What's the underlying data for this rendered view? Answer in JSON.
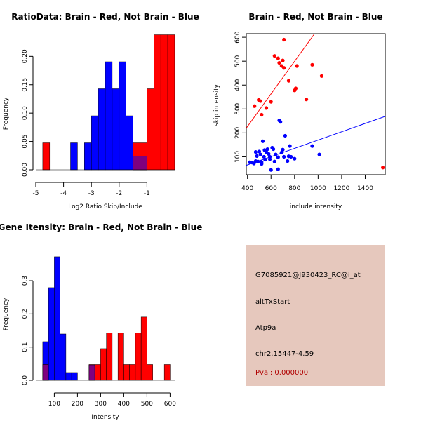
{
  "colors": {
    "brain": "#ff0000",
    "not_brain": "#0000ff",
    "overlap": "#7f007f",
    "panel_bg": "#e6c8bd",
    "pval": "#b00000"
  },
  "chart_data": [
    {
      "type": "bar",
      "title": "RatioData: Brain - Red, Not Brain - Blue",
      "xlabel": "Log2 Ratio Skip/Include",
      "ylabel": "Frequency",
      "xlim": [
        -5,
        0
      ],
      "ylim": [
        0,
        0.24
      ],
      "xticks": [
        "-5",
        "-4",
        "-3",
        "-2",
        "-1"
      ],
      "xtick_values": [
        -5,
        -4,
        -3,
        -2,
        -1
      ],
      "yticks": [
        "0.00",
        "0.05",
        "0.10",
        "0.15",
        "0.20"
      ],
      "ytick_values": [
        0,
        0.05,
        0.1,
        0.15,
        0.2
      ],
      "bin_width": 0.25,
      "series": [
        {
          "name": "Brain",
          "color": "#ff0000",
          "bins": [
            [
              -4.75,
              0.0476
            ],
            [
              -1.25,
              0.0238
            ],
            [
              -1.5,
              0.0476
            ],
            [
              -1.25,
              0.0476
            ],
            [
              -1.0,
              0.1429
            ],
            [
              -0.75,
              0.2381
            ],
            [
              -0.5,
              0.2381
            ],
            [
              -0.25,
              0.2381
            ]
          ]
        },
        {
          "name": "Not Brain",
          "color": "#0000ff",
          "bins": [
            [
              -3.75,
              0.0476
            ],
            [
              -3.25,
              0.0476
            ],
            [
              -3.0,
              0.0952
            ],
            [
              -2.75,
              0.1429
            ],
            [
              -2.5,
              0.1905
            ],
            [
              -2.25,
              0.1429
            ],
            [
              -2.0,
              0.1905
            ],
            [
              -1.75,
              0.0952
            ],
            [
              -1.5,
              0.0238
            ],
            [
              -1.25,
              0.0238
            ]
          ]
        }
      ]
    },
    {
      "type": "scatter",
      "title": "Brain - Red, Not Brain - Blue",
      "xlabel": "include intensity",
      "ylabel": "skip intensity",
      "xlim": [
        390,
        1570
      ],
      "ylim": [
        25,
        615
      ],
      "xticks": [
        "400",
        "600",
        "800",
        "1000",
        "1200",
        "1400"
      ],
      "xtick_values": [
        400,
        600,
        800,
        1000,
        1200,
        1400
      ],
      "yticks": [
        "100",
        "200",
        "300",
        "400",
        "500",
        "600"
      ],
      "ytick_values": [
        100,
        200,
        300,
        400,
        500,
        600
      ],
      "series": [
        {
          "name": "Brain",
          "color": "#ff0000",
          "points": [
            [
              460,
              312
            ],
            [
              495,
              338
            ],
            [
              510,
              333
            ],
            [
              520,
              276
            ],
            [
              560,
              304
            ],
            [
              600,
              330
            ],
            [
              630,
              522
            ],
            [
              660,
              512
            ],
            [
              670,
              493
            ],
            [
              690,
              480
            ],
            [
              700,
              503
            ],
            [
              710,
              472
            ],
            [
              710,
              590
            ],
            [
              750,
              418
            ],
            [
              800,
              378
            ],
            [
              810,
              386
            ],
            [
              820,
              480
            ],
            [
              900,
              340
            ],
            [
              950,
              485
            ],
            [
              1030,
              438
            ],
            [
              1550,
              55
            ]
          ],
          "fit": [
            [
              390,
              220
            ],
            [
              970,
              615
            ]
          ]
        },
        {
          "name": "Not Brain",
          "color": "#0000ff",
          "points": [
            [
              420,
              77
            ],
            [
              440,
              76
            ],
            [
              455,
              72
            ],
            [
              470,
              82
            ],
            [
              480,
              103
            ],
            [
              490,
              80
            ],
            [
              500,
              122
            ],
            [
              510,
              110
            ],
            [
              520,
              78
            ],
            [
              530,
              165
            ],
            [
              540,
              100
            ],
            [
              545,
              128
            ],
            [
              550,
              88
            ],
            [
              560,
              120
            ],
            [
              570,
              132
            ],
            [
              580,
              112
            ],
            [
              590,
              100
            ],
            [
              600,
              45
            ],
            [
              620,
              132
            ],
            [
              630,
              80
            ],
            [
              640,
              110
            ],
            [
              660,
              98
            ],
            [
              670,
              252
            ],
            [
              680,
              246
            ],
            [
              690,
              118
            ],
            [
              700,
              130
            ],
            [
              710,
              100
            ],
            [
              720,
              188
            ],
            [
              740,
              82
            ],
            [
              750,
              102
            ],
            [
              760,
              145
            ],
            [
              770,
              100
            ],
            [
              800,
              92
            ],
            [
              950,
              145
            ],
            [
              1010,
              110
            ],
            [
              660,
              48
            ],
            [
              610,
              138
            ],
            [
              520,
              70
            ],
            [
              470,
              120
            ],
            [
              590,
              90
            ]
          ],
          "fit": [
            [
              390,
              64
            ],
            [
              1570,
              269
            ]
          ]
        }
      ]
    },
    {
      "type": "bar",
      "title": "Gene Itensity: Brain - Red, Not Brain - Blue",
      "xlabel": "Intensity",
      "ylabel": "Frequency",
      "xlim": [
        20,
        620
      ],
      "ylim": [
        0,
        0.41
      ],
      "xticks": [
        "100",
        "200",
        "300",
        "400",
        "500",
        "600"
      ],
      "xtick_values": [
        100,
        200,
        300,
        400,
        500,
        600
      ],
      "yticks": [
        "0.0",
        "0.1",
        "0.2",
        "0.3"
      ],
      "ytick_values": [
        0,
        0.1,
        0.2,
        0.3
      ],
      "bin_width": 25,
      "series": [
        {
          "name": "Brain",
          "color": "#ff0000",
          "bins": [
            [
              50,
              0.0476
            ],
            [
              250,
              0.0476
            ],
            [
              275,
              0.0476
            ],
            [
              300,
              0.0952
            ],
            [
              325,
              0.1429
            ],
            [
              375,
              0.1429
            ],
            [
              400,
              0.0476
            ],
            [
              425,
              0.0476
            ],
            [
              450,
              0.1429
            ],
            [
              475,
              0.1905
            ],
            [
              500,
              0.0476
            ],
            [
              575,
              0.0476
            ]
          ]
        },
        {
          "name": "Not Brain",
          "color": "#0000ff",
          "bins": [
            [
              50,
              0.1163
            ],
            [
              75,
              0.2791
            ],
            [
              100,
              0.3721
            ],
            [
              125,
              0.1395
            ],
            [
              150,
              0.0233
            ],
            [
              175,
              0.0233
            ],
            [
              250,
              0.0465
            ]
          ]
        }
      ]
    }
  ],
  "info": {
    "id": "G7085921@J930423_RC@i_at",
    "event": "altTxStart",
    "gene": "Atp9a",
    "location": "chr2.15447-4.59",
    "pval": "Pval: 0.000000"
  }
}
